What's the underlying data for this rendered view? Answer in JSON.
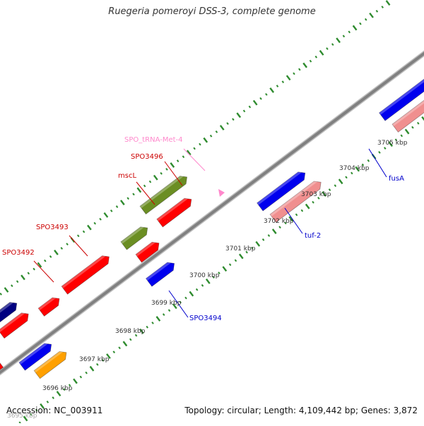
{
  "title": "Ruegeria pomeroyi DSS-3, complete genome",
  "footer": {
    "accession": "Accession: NC_003911",
    "summary": "Topology: circular; Length: 4,109,442 bp; Genes: 3,872"
  },
  "colors": {
    "backbone": "#808080",
    "tick": "#2e8b2e",
    "red_gene": "#ff0000",
    "blue_gene": "#0000ee",
    "pink_gene": "#f08f8f",
    "olive_gene": "#6b8e23",
    "orange_gene": "#ffa000",
    "navy_gene": "#000080",
    "trna": "#ff88cc"
  },
  "kbp_ticks": [
    {
      "label": "3695 kbp"
    },
    {
      "label": "3696 kbp"
    },
    {
      "label": "3697 kbp"
    },
    {
      "label": "3698 kbp"
    },
    {
      "label": "3699 kbp"
    },
    {
      "label": "3700 kbp"
    },
    {
      "label": "3701 kbp"
    },
    {
      "label": "3702 kbp"
    },
    {
      "label": "3703 kbp"
    },
    {
      "label": "3704 kbp"
    },
    {
      "label": "3705 kbp"
    }
  ],
  "gene_labels": [
    {
      "name": "SPO3492",
      "color": "#cc0000"
    },
    {
      "name": "SPO3493",
      "color": "#cc0000"
    },
    {
      "name": "mscL",
      "color": "#cc0000"
    },
    {
      "name": "SPO3496",
      "color": "#cc0000"
    },
    {
      "name": "SPO_tRNA-Met-4",
      "color": "#ff88cc"
    },
    {
      "name": "SPO3494",
      "color": "#0000cc"
    },
    {
      "name": "tuf-2",
      "color": "#0000cc"
    },
    {
      "name": "fusA",
      "color": "#0000cc"
    }
  ]
}
